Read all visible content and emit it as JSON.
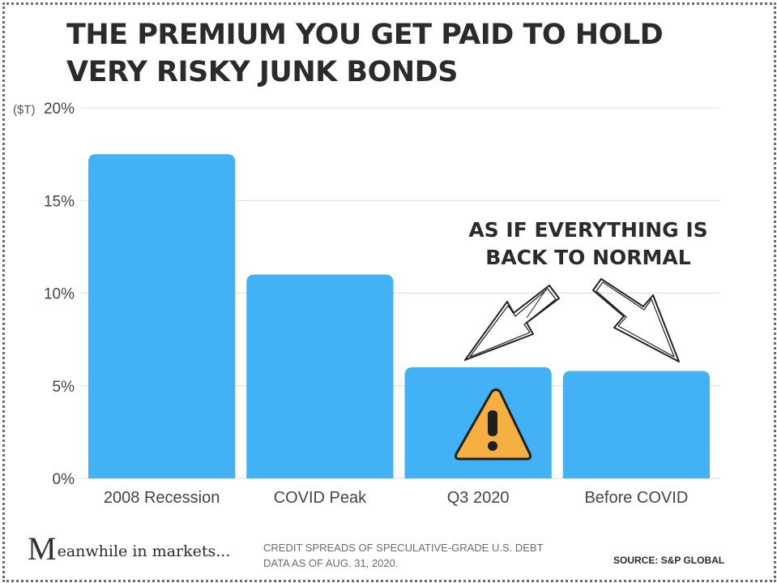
{
  "title_lines": [
    "THE PREMIUM YOU GET PAID TO HOLD",
    "VERY RISKY JUNK BONDS"
  ],
  "annotation": {
    "line1": "AS IF EVERYTHING IS",
    "line2": "BACK TO NORMAL",
    "warning_icon": "warning-triangle-icon"
  },
  "footer": {
    "note_line1": "CREDIT SPREADS OF SPECULATIVE-GRADE U.S. DEBT",
    "note_line2": "DATA AS OF AUG. 31, 2020.",
    "source": "SOURCE:  S&P GLOBAL",
    "logo_initial": "M",
    "logo_text": "eanwhile in markets..."
  },
  "chart_data": {
    "type": "bar",
    "unit_label": "($T)",
    "categories": [
      "2008 Recession",
      "COVID Peak",
      "Q3 2020",
      "Before COVID"
    ],
    "values": [
      17.5,
      11.0,
      6.0,
      5.8
    ],
    "ylim": [
      0,
      20
    ],
    "yticks": [
      0,
      5,
      10,
      15,
      20
    ],
    "ytick_labels": [
      "0%",
      "5%",
      "10%",
      "15%",
      "20%"
    ],
    "grid": true,
    "colors": {
      "bar": "#42b1f5",
      "grid": "#dcdcdc",
      "text": "#444444",
      "warning_fill": "#f6b042",
      "warning_stroke": "#1f1f1f"
    }
  }
}
